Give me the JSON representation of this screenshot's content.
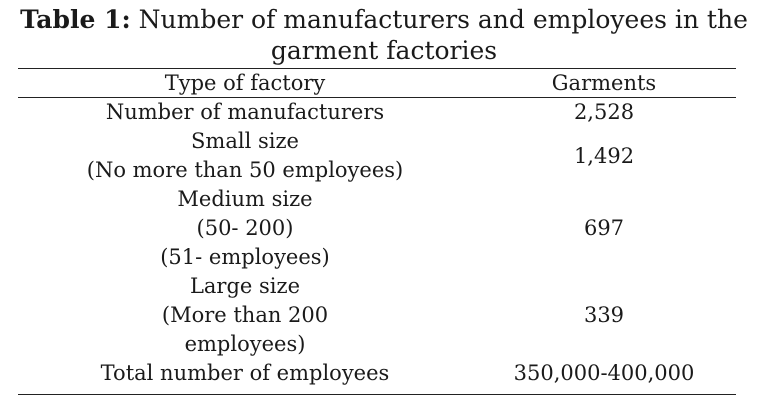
{
  "caption": {
    "label": "Table 1:",
    "text_line1": "Number of manufacturers and employees in the",
    "text_line2": "garment factories"
  },
  "table": {
    "headers": [
      "Type of factory",
      "Garments"
    ],
    "rows": [
      {
        "type_lines": [
          "Number of manufacturers"
        ],
        "value": "2,528"
      },
      {
        "type_lines": [
          "Small size",
          "(No more than 50 employees)"
        ],
        "value": "1,492"
      },
      {
        "type_lines": [
          "Medium size",
          "(50- 200)",
          "(51- employees)"
        ],
        "value": "697"
      },
      {
        "type_lines": [
          "Large size",
          "(More than 200",
          "employees)"
        ],
        "value": "339"
      },
      {
        "type_lines": [
          "Total number of employees"
        ],
        "value": "350,000-400,000"
      }
    ]
  }
}
